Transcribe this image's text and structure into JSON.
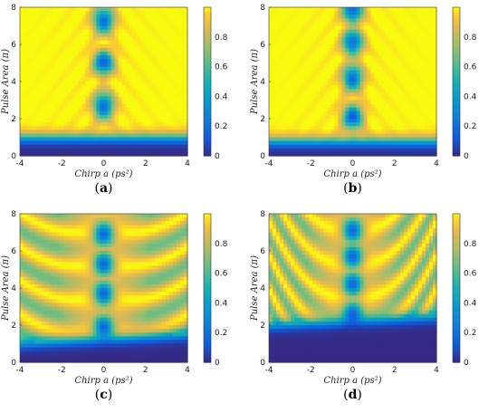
{
  "chart_data": [
    {
      "type": "heatmap",
      "panel": "(a)",
      "caption_open": "(",
      "caption_letter": "a",
      "caption_close": ")",
      "xlabel": "Chirp a (ps²)",
      "ylabel": "Pulse Area (π)",
      "xlim": [
        -4,
        4
      ],
      "ylim": [
        0,
        8
      ],
      "xticks": [
        "-4",
        "-2",
        "0",
        "2",
        "4"
      ],
      "yticks": [
        "0",
        "2",
        "4",
        "6",
        "8"
      ],
      "colorbar": {
        "ticks": [
          "0",
          "0.2",
          "0.4",
          "0.6",
          "0.8"
        ],
        "range": [
          0,
          1
        ]
      },
      "colormap": "parula",
      "threshold_pulse_area": 1.0,
      "curvature": 0.0,
      "lobe_centers_pulse_area": [
        2.7,
        5.0,
        7.3
      ],
      "fringes": false
    },
    {
      "type": "heatmap",
      "panel": "(b)",
      "caption_open": "(",
      "caption_letter": "b",
      "caption_close": ")",
      "xlabel": "Chirp a (ps²)",
      "ylabel": "Pulse Area (π)",
      "xlim": [
        -4,
        4
      ],
      "ylim": [
        0,
        8
      ],
      "xticks": [
        "-4",
        "-2",
        "0",
        "2",
        "4"
      ],
      "yticks": [
        "0",
        "2",
        "4",
        "6",
        "8"
      ],
      "colorbar": {
        "ticks": [
          "0",
          "0.2",
          "0.4",
          "0.6",
          "0.8"
        ],
        "range": [
          0,
          1
        ]
      },
      "colormap": "parula",
      "threshold_pulse_area": 0.8,
      "curvature": 0.05,
      "lobe_centers_pulse_area": [
        2.1,
        4.2,
        6.1,
        7.8
      ],
      "fringes": false
    },
    {
      "type": "heatmap",
      "panel": "(c)",
      "caption_open": "(",
      "caption_letter": "c",
      "caption_close": ")",
      "xlabel": "Chirp a (ps²)",
      "ylabel": "Pulse Area (π)",
      "xlim": [
        -4,
        4
      ],
      "ylim": [
        0,
        8
      ],
      "xticks": [
        "-4",
        "-2",
        "0",
        "2",
        "4"
      ],
      "yticks": [
        "0",
        "2",
        "4",
        "6",
        "8"
      ],
      "colorbar": {
        "ticks": [
          "0",
          "0.2",
          "0.4",
          "0.6",
          "0.8"
        ],
        "range": [
          0,
          1
        ]
      },
      "colormap": "parula",
      "threshold_pulse_area": 1.3,
      "curvature": 0.15,
      "lobe_centers_pulse_area": [
        1.9,
        3.7,
        5.3,
        6.9
      ],
      "fringes": true
    },
    {
      "type": "heatmap",
      "panel": "(d)",
      "caption_open": "(",
      "caption_letter": "d",
      "caption_close": ")",
      "xlabel": "Chirp a (ps²)",
      "ylabel": "Pulse Area (π)",
      "xlim": [
        -4,
        4
      ],
      "ylim": [
        0,
        8
      ],
      "xticks": [
        "-4",
        "-2",
        "0",
        "2",
        "4"
      ],
      "yticks": [
        "0",
        "2",
        "4",
        "6",
        "8"
      ],
      "colorbar": {
        "ticks": [
          "0",
          "0.2",
          "0.4",
          "0.6",
          "0.8"
        ],
        "range": [
          0,
          1
        ]
      },
      "colormap": "parula",
      "threshold_pulse_area": 2.3,
      "curvature": 0.35,
      "lobe_centers_pulse_area": [
        2.6,
        4.2,
        5.7,
        7.1
      ],
      "fringes": true
    }
  ]
}
